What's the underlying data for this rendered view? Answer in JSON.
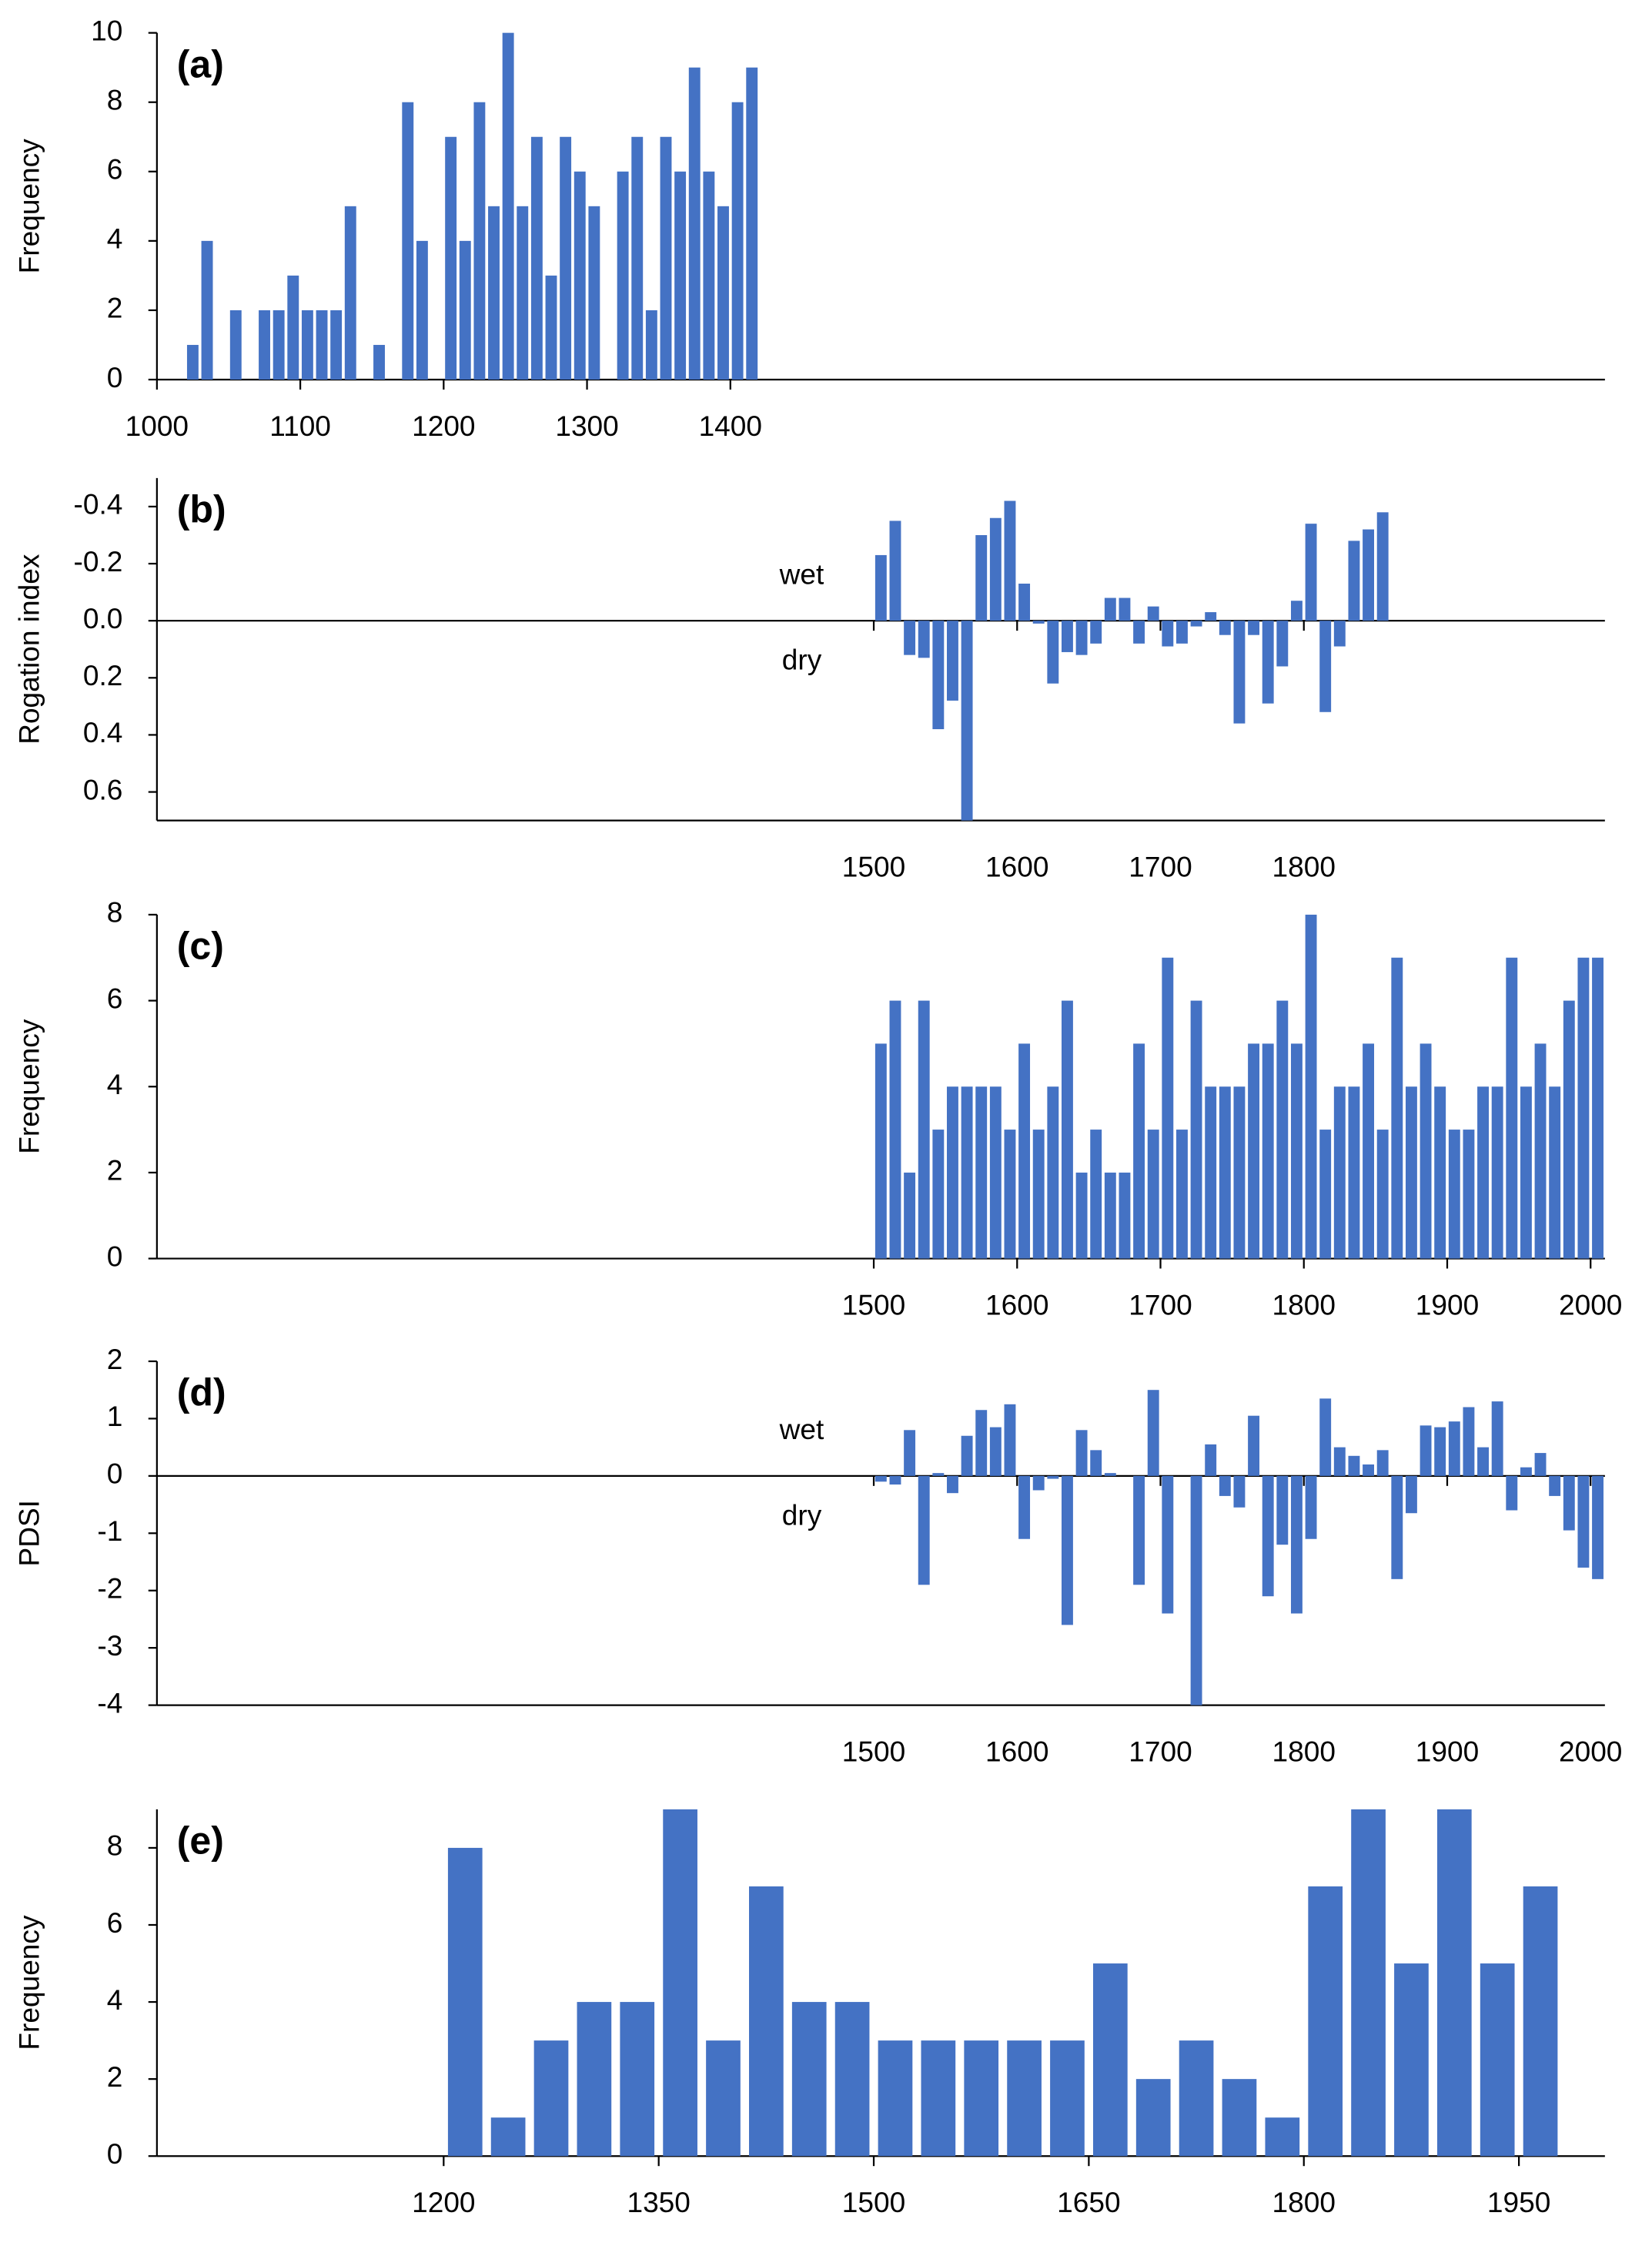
{
  "chart_data": [
    {
      "type": "histogram",
      "title": "(a)",
      "ylabel": "Frequency",
      "color": "#4472c4",
      "bins": [
        1020,
        1030,
        1040,
        1050,
        1060,
        1070,
        1080,
        1090,
        1100,
        1110,
        1120,
        1130,
        1140,
        1150,
        1160,
        1170,
        1180,
        1190,
        1200,
        1210,
        1220,
        1230,
        1240,
        1250,
        1260,
        1270,
        1280,
        1290,
        1300,
        1310,
        1320,
        1330,
        1340,
        1350,
        1360,
        1370,
        1380,
        1390,
        1400,
        1410,
        1420
      ],
      "values": [
        1,
        4,
        0,
        2,
        0,
        2,
        2,
        3,
        2,
        2,
        2,
        5,
        0,
        1,
        0,
        8,
        4,
        0,
        7,
        4,
        8,
        5,
        10,
        5,
        7,
        3,
        7,
        6,
        5,
        0,
        6,
        7,
        2,
        7,
        6,
        9,
        6,
        5,
        8,
        9
      ],
      "xlim": [
        1000,
        2010
      ],
      "xticks": [
        1000,
        1100,
        1200,
        1300,
        1400
      ],
      "ylim": [
        0,
        10
      ],
      "yticks": [
        0,
        2,
        4,
        6,
        8,
        10
      ]
    },
    {
      "type": "bar",
      "title": "(b)",
      "ylabel": "Rogation index",
      "color": "#4472c4",
      "y_inverted": true,
      "annotations": [
        "wet",
        "dry"
      ],
      "x": [
        1500,
        1510,
        1520,
        1530,
        1540,
        1550,
        1560,
        1570,
        1580,
        1590,
        1600,
        1610,
        1620,
        1630,
        1640,
        1650,
        1660,
        1670,
        1680,
        1690,
        1700,
        1710,
        1720,
        1730,
        1740,
        1750,
        1760,
        1770,
        1780,
        1790,
        1800,
        1810,
        1820,
        1830,
        1840,
        1850
      ],
      "values": [
        -0.23,
        -0.35,
        0.12,
        0.13,
        0.38,
        0.28,
        0.7,
        -0.3,
        -0.36,
        -0.42,
        -0.13,
        0.01,
        0.22,
        0.11,
        0.12,
        0.08,
        -0.08,
        -0.08,
        0.08,
        -0.05,
        0.09,
        0.08,
        0.02,
        -0.03,
        0.05,
        0.36,
        0.05,
        0.29,
        0.16,
        -0.07,
        -0.34,
        0.32,
        0.09,
        -0.28,
        -0.32,
        -0.38
      ],
      "xlim": [
        1000,
        2010
      ],
      "xticks": [
        1500,
        1600,
        1700,
        1800
      ],
      "ylim": [
        -0.5,
        0.7
      ],
      "yticks": [
        -0.4,
        -0.2,
        {
          "value": 0,
          "label": "0.0"
        },
        0.2,
        0.4,
        0.6
      ]
    },
    {
      "type": "histogram",
      "title": "(c)",
      "ylabel": "Frequency",
      "color": "#4472c4",
      "bins": [
        1500,
        1510,
        1520,
        1530,
        1540,
        1550,
        1560,
        1570,
        1580,
        1590,
        1600,
        1610,
        1620,
        1630,
        1640,
        1650,
        1660,
        1670,
        1680,
        1690,
        1700,
        1710,
        1720,
        1730,
        1740,
        1750,
        1760,
        1770,
        1780,
        1790,
        1800,
        1810,
        1820,
        1830,
        1840,
        1850,
        1860,
        1870,
        1880,
        1890,
        1900,
        1910,
        1920,
        1930,
        1940,
        1950,
        1960,
        1970,
        1980,
        1990,
        2000,
        2010
      ],
      "values": [
        5,
        6,
        2,
        6,
        3,
        4,
        4,
        4,
        4,
        3,
        5,
        3,
        4,
        6,
        2,
        3,
        2,
        2,
        5,
        3,
        7,
        3,
        6,
        4,
        4,
        4,
        5,
        5,
        6,
        5,
        8,
        3,
        4,
        4,
        5,
        3,
        7,
        4,
        5,
        4,
        3,
        3,
        4,
        4,
        7,
        4,
        5,
        4,
        6,
        7,
        7
      ],
      "xlim": [
        1000,
        2010
      ],
      "xticks": [
        1500,
        1600,
        1700,
        1800,
        1900,
        2000
      ],
      "ylim": [
        0,
        8
      ],
      "yticks": [
        0,
        2,
        4,
        6,
        8
      ]
    },
    {
      "type": "bar",
      "title": "(d)",
      "ylabel": "PDSI",
      "color": "#4472c4",
      "annotations": [
        "wet",
        "dry"
      ],
      "x": [
        1500,
        1510,
        1520,
        1530,
        1540,
        1550,
        1560,
        1570,
        1580,
        1590,
        1600,
        1610,
        1620,
        1630,
        1640,
        1650,
        1660,
        1670,
        1680,
        1690,
        1700,
        1710,
        1720,
        1730,
        1740,
        1750,
        1760,
        1770,
        1780,
        1790,
        1800,
        1810,
        1820,
        1830,
        1840,
        1850,
        1860,
        1870,
        1880,
        1890,
        1900,
        1910,
        1920,
        1930,
        1940,
        1950,
        1960,
        1970,
        1980,
        1990,
        2000
      ],
      "values": [
        -0.1,
        -0.15,
        0.8,
        -1.9,
        0.05,
        -0.3,
        0.7,
        1.15,
        0.85,
        1.25,
        -1.1,
        -0.25,
        -0.05,
        -2.6,
        0.8,
        0.45,
        0.05,
        0,
        -1.9,
        1.5,
        -2.4,
        0,
        -4,
        0.55,
        -0.35,
        -0.55,
        1.05,
        -2.1,
        -1.2,
        -2.4,
        -1.1,
        1.35,
        0.5,
        0.35,
        0.2,
        0.45,
        -1.8,
        -0.65,
        0.88,
        0.85,
        0.95,
        1.2,
        0.5,
        1.3,
        -0.6,
        0.15,
        0.4,
        -0.35,
        -0.95,
        -1.6,
        -1.8
      ],
      "xlim": [
        1000,
        2010
      ],
      "xticks": [
        1500,
        1600,
        1700,
        1800,
        1900,
        2000
      ],
      "ylim": [
        -4,
        2
      ],
      "yticks": [
        -4,
        -3,
        -2,
        -1,
        0,
        1,
        2
      ]
    },
    {
      "type": "histogram",
      "title": "(e)",
      "ylabel": "Frequency",
      "color": "#4472c4",
      "bins": [
        1200,
        1230,
        1260,
        1290,
        1320,
        1350,
        1380,
        1410,
        1440,
        1470,
        1500,
        1530,
        1560,
        1590,
        1620,
        1650,
        1680,
        1710,
        1740,
        1770,
        1800,
        1830,
        1860,
        1890,
        1920,
        1950,
        1980
      ],
      "values": [
        8,
        1,
        3,
        4,
        4,
        9,
        3,
        7,
        4,
        4,
        3,
        3,
        3,
        3,
        3,
        5,
        2,
        3,
        2,
        1,
        7,
        9,
        5,
        9,
        5,
        7
      ],
      "xlim": [
        1000,
        2010
      ],
      "xticks": [
        1200,
        1350,
        1500,
        1650,
        1800,
        1950
      ],
      "ylim": [
        0,
        9
      ],
      "yticks": [
        0,
        2,
        4,
        6,
        8
      ]
    }
  ]
}
